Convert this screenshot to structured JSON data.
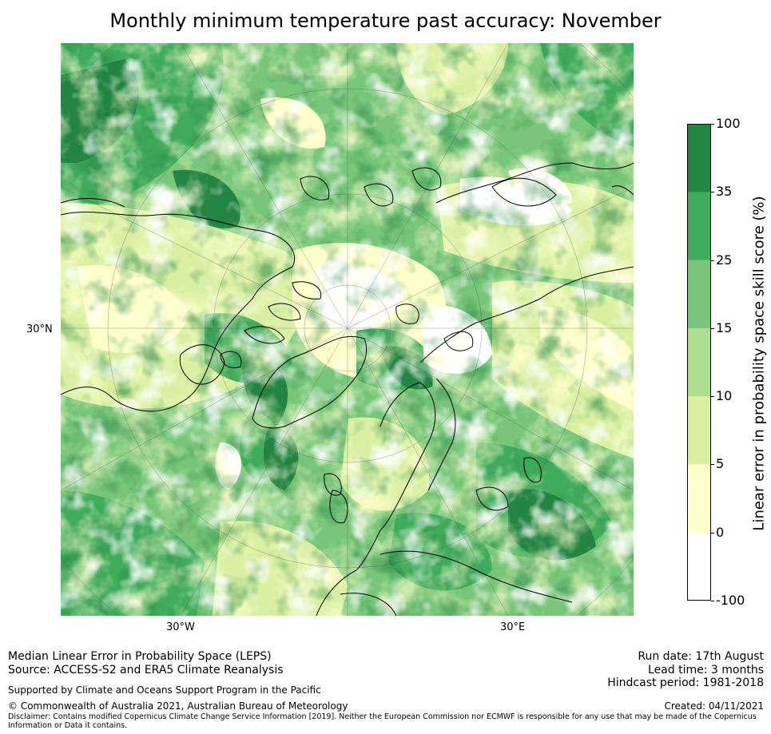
{
  "title": "Monthly minimum temperature past accuracy: November",
  "map": {
    "type": "polar-stereographic filled contour map",
    "lat_labels": [
      "30°N"
    ],
    "lon_labels": [
      "30°W",
      "30°E"
    ]
  },
  "colorbar": {
    "label": "Linear error in probability space skill score (%)",
    "ticks": [
      "100",
      "35",
      "25",
      "15",
      "10",
      "5",
      "0",
      "-100"
    ],
    "bins": [
      {
        "from": "-100",
        "to": "0",
        "color": "#ffffff"
      },
      {
        "from": "0",
        "to": "5",
        "color": "#ffffcc"
      },
      {
        "from": "5",
        "to": "10",
        "color": "#d9f0a3"
      },
      {
        "from": "10",
        "to": "15",
        "color": "#addd8e"
      },
      {
        "from": "15",
        "to": "25",
        "color": "#78c679"
      },
      {
        "from": "25",
        "to": "35",
        "color": "#41ab5d"
      },
      {
        "from": "35",
        "to": "100",
        "color": "#238443"
      }
    ]
  },
  "footer": {
    "line1": "Median Linear Error in Probability Space (LEPS)",
    "line2": "Source: ACCESS-S2 and ERA5 Climate Reanalysis",
    "supported": "Supported by Climate and Oceans Support Program in the Pacific",
    "copyright": "© Commonwealth of Australia 2021, Australian Bureau of Meteorology",
    "disclaimer_1": "Disclaimer: Contains modified Copernicus Climate Change Service Information [2019]. Neither the European Commission nor ECMWF is responsible for any use that may be made of the Copernicus",
    "disclaimer_2": "Information or Data it contains.",
    "run_date": "Run date: 17th August",
    "lead_time": "Lead time: 3 months",
    "hindcast": "Hindcast period: 1981-2018",
    "created": "Created: 04/11/2021"
  }
}
